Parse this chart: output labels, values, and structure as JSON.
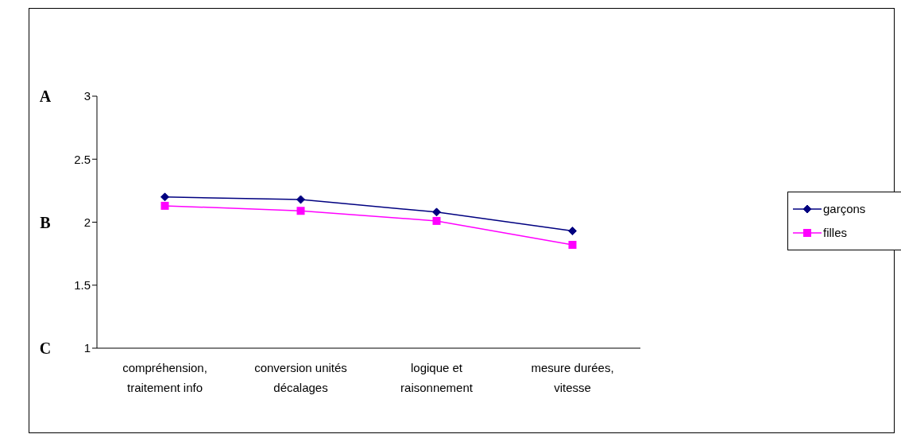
{
  "chart_data": {
    "type": "line",
    "categories": [
      "compréhension, traitement info",
      "conversion unités décalages",
      "logique et raisonnement",
      "mesure durées, vitesse"
    ],
    "series": [
      {
        "name": "garçons",
        "color": "#000080",
        "marker": "diamond",
        "values": [
          2.2,
          2.18,
          2.08,
          1.93
        ]
      },
      {
        "name": "filles",
        "color": "#ff00ff",
        "marker": "square",
        "values": [
          2.13,
          2.09,
          2.01,
          1.82
        ]
      }
    ],
    "ylim": [
      1,
      3
    ],
    "yticks": [
      1,
      1.5,
      2,
      2.5,
      3
    ],
    "annotations": [
      "A",
      "B",
      "C"
    ],
    "legend": "right"
  }
}
